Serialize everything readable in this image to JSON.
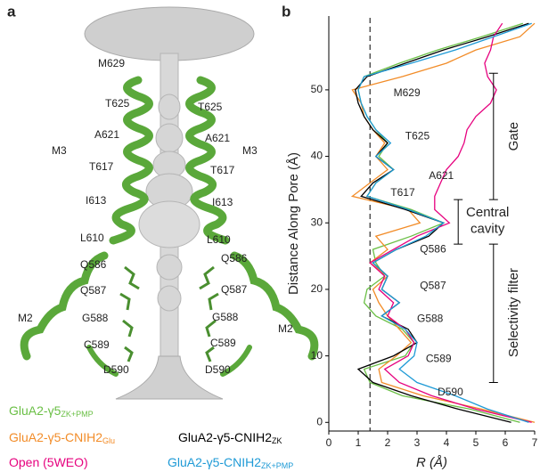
{
  "panel_a": {
    "label": "a",
    "residues": [
      "M629",
      "T625",
      "A621",
      "T617",
      "I613",
      "L610",
      "Q586",
      "Q587",
      "G588",
      "C589",
      "D590"
    ],
    "helices": [
      "M3",
      "M2"
    ]
  },
  "chart_data": {
    "type": "line",
    "panel_label": "b",
    "ylabel": "Distance Along Pore (Å)",
    "xlabel": "R (Å)",
    "xlim": [
      0,
      7
    ],
    "xticks": [
      0,
      1,
      2,
      3,
      4,
      5,
      6,
      7
    ],
    "ylim": [
      -1.3,
      61.1
    ],
    "yticks": [
      0,
      10,
      20,
      30,
      40,
      50
    ],
    "reference_line": 1.4,
    "y": [
      0,
      2,
      4,
      6,
      8,
      10,
      12,
      14,
      16,
      18,
      20,
      22,
      24,
      26,
      28,
      30,
      32,
      34,
      36,
      38,
      40,
      42,
      44,
      46,
      48,
      50,
      52,
      54,
      56,
      58,
      60
    ],
    "series": [
      {
        "name": "GluA2-γ5",
        "subscript": "ZK+PMP",
        "color": "#6abf45",
        "values": [
          6.5,
          4.8,
          2.5,
          1.4,
          1.2,
          2.6,
          2.9,
          2.5,
          1.6,
          1.2,
          1.3,
          1.9,
          1.6,
          1.5,
          2.8,
          3.9,
          2.8,
          1.3,
          1.6,
          2.2,
          1.7,
          2.0,
          1.6,
          1.3,
          1.1,
          1.0,
          1.2,
          2.4,
          3.7,
          5.2,
          6.6
        ]
      },
      {
        "name": "GluA2-γ5-CNIH2",
        "subscript": "Glu",
        "color": "#f28c28",
        "values": [
          7.0,
          5.2,
          3.2,
          1.8,
          1.7,
          2.3,
          2.8,
          2.4,
          2.0,
          1.7,
          1.5,
          2.0,
          1.4,
          2.0,
          1.6,
          3.1,
          2.7,
          0.8,
          1.4,
          2.0,
          1.6,
          1.9,
          1.5,
          1.2,
          1.1,
          0.8,
          2.5,
          4.0,
          5.0,
          6.5,
          7.0
        ]
      },
      {
        "name": "GluA2-γ5-CNIH2",
        "subscript": "ZK",
        "color": "#000000",
        "values": [
          6.2,
          4.4,
          2.8,
          1.5,
          1.0,
          2.2,
          3.0,
          2.7,
          1.8,
          2.4,
          1.8,
          2.0,
          1.5,
          2.3,
          3.4,
          3.9,
          2.6,
          1.1,
          1.5,
          2.2,
          1.6,
          2.0,
          1.5,
          1.2,
          1.0,
          0.9,
          1.3,
          2.6,
          3.9,
          5.4,
          6.8
        ]
      },
      {
        "name": "Open (5WEO)",
        "color": "#e6007e",
        "values": [
          6.9,
          5.0,
          3.5,
          2.4,
          1.9,
          2.7,
          2.9,
          2.6,
          2.0,
          2.2,
          1.7,
          1.9,
          1.4,
          2.2,
          3.0,
          4.1,
          3.6,
          3.6,
          3.8,
          4.0,
          4.4,
          4.6,
          4.7,
          5.0,
          5.5,
          5.7,
          5.4,
          5.3,
          5.5,
          5.6,
          5.9
        ]
      },
      {
        "name": "GluA2-γ5-CNIH2",
        "subscript": "ZK+PMP",
        "color": "#1e9ad6",
        "values": [
          6.8,
          5.4,
          4.3,
          3.0,
          2.4,
          2.9,
          3.0,
          2.6,
          1.8,
          2.4,
          1.8,
          2.0,
          1.5,
          2.3,
          3.3,
          3.9,
          2.7,
          1.3,
          1.6,
          2.2,
          1.6,
          2.1,
          1.6,
          1.3,
          1.1,
          1.0,
          1.2,
          2.8,
          4.3,
          5.6,
          6.9
        ]
      }
    ],
    "annotations": [
      "M629",
      "T625",
      "A621",
      "T617",
      "Q586",
      "Q587",
      "G588",
      "C589",
      "D590"
    ],
    "bracket_labels": [
      [
        "Gate"
      ],
      [
        "Central",
        "cavity"
      ],
      [
        "Selectivity filter"
      ]
    ]
  }
}
